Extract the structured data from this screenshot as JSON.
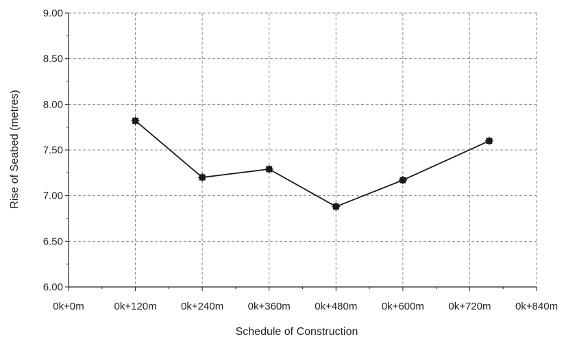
{
  "chart_data": {
    "type": "line",
    "title": "",
    "xlabel": "Schedule of Construction",
    "ylabel": "Rise of Seabed (metres)",
    "x_ticks": [
      {
        "value": 0,
        "label": "0k+0m"
      },
      {
        "value": 120,
        "label": "0k+120m"
      },
      {
        "value": 240,
        "label": "0k+240m"
      },
      {
        "value": 360,
        "label": "0k+360m"
      },
      {
        "value": 480,
        "label": "0k+480m"
      },
      {
        "value": 600,
        "label": "0k+600m"
      },
      {
        "value": 720,
        "label": "0k+720m"
      },
      {
        "value": 840,
        "label": "0k+840m"
      }
    ],
    "y_ticks": [
      "6.00",
      "6.50",
      "7.00",
      "7.50",
      "8.00",
      "8.50",
      "9.00"
    ],
    "xlim": [
      0,
      840
    ],
    "ylim": [
      6.0,
      9.0
    ],
    "grid": true,
    "series": [
      {
        "x": [
          120,
          240,
          360,
          480,
          600,
          755
        ],
        "y": [
          7.82,
          7.2,
          7.29,
          6.88,
          7.17,
          7.6
        ]
      }
    ],
    "colors": {
      "line": "#1a1a1a",
      "grid": "#8a8a8a",
      "axis": "#222222"
    }
  }
}
